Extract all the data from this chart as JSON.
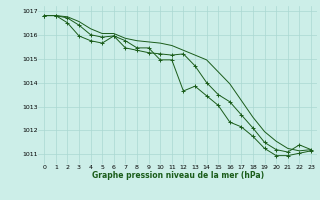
{
  "title": "Graphe pression niveau de la mer (hPa)",
  "background_color": "#cceee8",
  "grid_color": "#aad8d2",
  "line_color": "#1a5c1a",
  "xlim": [
    -0.5,
    23.5
  ],
  "ylim": [
    1010.6,
    1017.2
  ],
  "yticks": [
    1011,
    1012,
    1013,
    1014,
    1015,
    1016,
    1017
  ],
  "xticks": [
    0,
    1,
    2,
    3,
    4,
    5,
    6,
    7,
    8,
    9,
    10,
    11,
    12,
    13,
    14,
    15,
    16,
    17,
    18,
    19,
    20,
    21,
    22,
    23
  ],
  "series1": [
    1016.8,
    1016.8,
    1016.7,
    1016.4,
    1016.0,
    1015.9,
    1015.95,
    1015.45,
    1015.35,
    1015.25,
    1015.2,
    1015.15,
    1015.2,
    1014.7,
    1014.0,
    1013.5,
    1013.2,
    1012.65,
    1012.1,
    1011.5,
    1011.2,
    1011.1,
    1011.4,
    1011.2
  ],
  "series2": [
    1016.8,
    1016.8,
    1016.5,
    1015.95,
    1015.75,
    1015.65,
    1015.95,
    1015.75,
    1015.45,
    1015.45,
    1014.95,
    1014.95,
    1013.65,
    1013.85,
    1013.45,
    1013.05,
    1012.35,
    1012.15,
    1011.75,
    1011.25,
    1010.95,
    1010.95,
    1011.05,
    1011.15
  ],
  "series3": [
    1016.8,
    1016.8,
    1016.75,
    1016.55,
    1016.25,
    1016.05,
    1016.05,
    1015.85,
    1015.75,
    1015.7,
    1015.65,
    1015.55,
    1015.35,
    1015.15,
    1014.95,
    1014.45,
    1013.95,
    1013.25,
    1012.55,
    1011.95,
    1011.55,
    1011.25,
    1011.15,
    1011.2
  ]
}
